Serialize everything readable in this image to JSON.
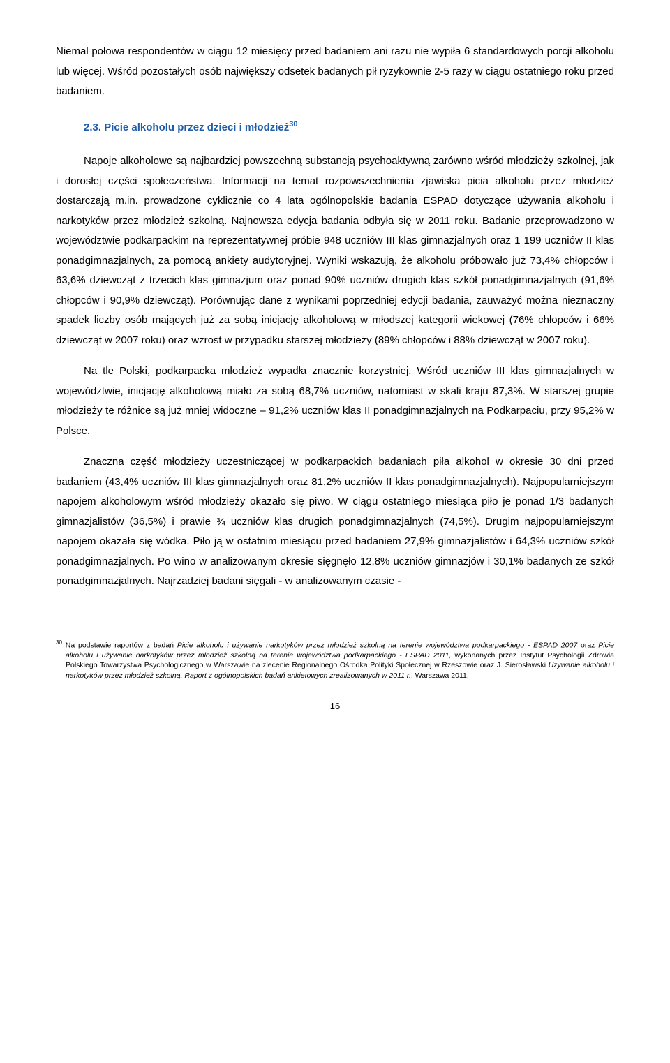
{
  "intro_paragraph": "Niemal połowa respondentów w ciągu 12 miesięcy przed badaniem ani razu nie wypiła 6 standardowych porcji alkoholu lub więcej. Wśród pozostałych osób największy odsetek badanych pił ryzykownie 2-5 razy w ciągu ostatniego roku przed badaniem.",
  "section": {
    "number": "2.3.",
    "title": "Picie alkoholu przez dzieci i młodzież",
    "footref": "30"
  },
  "para1": "Napoje alkoholowe są najbardziej powszechną substancją psychoaktywną zarówno wśród młodzieży szkolnej, jak i dorosłej części społeczeństwa. Informacji na temat rozpowszechnienia zjawiska picia alkoholu przez młodzież dostarczają m.in. prowadzone cyklicznie co 4 lata ogólnopolskie badania ESPAD dotyczące używania alkoholu i narkotyków przez młodzież szkolną. Najnowsza edycja badania odbyła się w 2011 roku. Badanie przeprowadzono w województwie podkarpackim na reprezentatywnej próbie 948 uczniów III klas gimnazjalnych oraz 1 199 uczniów II klas ponadgimnazjalnych, za pomocą ankiety audytoryjnej. Wyniki wskazują, że alkoholu próbowało już 73,4% chłopców i 63,6% dziewcząt z trzecich klas gimnazjum oraz ponad 90% uczniów drugich klas szkół ponadgimnazjalnych (91,6% chłopców i 90,9% dziewcząt). Porównując dane z wynikami poprzedniej edycji badania, zauważyć można nieznaczny spadek liczby osób mających już za sobą inicjację alkoholową w młodszej kategorii wiekowej (76% chłopców i 66% dziewcząt w 2007 roku) oraz wzrost w przypadku starszej młodzieży (89% chłopców i 88% dziewcząt w 2007 roku).",
  "para2": "Na tle Polski, podkarpacka młodzież wypadła znacznie korzystniej. Wśród uczniów III klas gimnazjalnych w województwie, inicjację alkoholową miało za sobą 68,7% uczniów, natomiast w skali kraju 87,3%. W starszej grupie młodzieży te różnice są już mniej widoczne – 91,2% uczniów klas II ponadgimnazjalnych na Podkarpaciu, przy 95,2% w Polsce.",
  "para3": "Znaczna część młodzieży uczestniczącej w podkarpackich badaniach piła alkohol w okresie 30 dni przed badaniem (43,4% uczniów III klas gimnazjalnych oraz 81,2% uczniów II klas ponadgimnazjalnych). Najpopularniejszym napojem alkoholowym wśród młodzieży okazało się piwo. W ciągu ostatniego miesiąca piło je ponad 1/3 badanych gimnazjalistów (36,5%) i prawie ¾ uczniów klas drugich ponadgimnazjalnych (74,5%). Drugim najpopularniejszym napojem okazała się wódka. Piło ją w ostatnim miesiącu przed badaniem 27,9% gimnazjalistów i 64,3% uczniów szkół ponadgimnazjalnych. Po wino w analizowanym okresie sięgnęło 12,8% uczniów gimnazjów i 30,1% badanych ze szkół ponadgimnazjalnych. Najrzadziej badani sięgali - w analizowanym czasie -",
  "footnote": {
    "ref": "30",
    "text_part1": "Na podstawie raportów z badań ",
    "italic1": "Picie alkoholu i używanie narkotyków przez młodzież szkolną na terenie województwa podkarpackiego - ESPAD 2007",
    "text_part2": " oraz ",
    "italic2": "Picie alkoholu i używanie narkotyków przez młodzież szkolną na terenie województwa podkarpackiego - ESPAD 2011,",
    "text_part3": " wykonanych przez Instytut Psychologii Zdrowia Polskiego Towarzystwa Psychologicznego w Warszawie na zlecenie Regionalnego Ośrodka Polityki Społecznej w Rzeszowie oraz J. Sierosławski ",
    "italic3": "Używanie alkoholu i narkotyków przez młodzież szkolną. Raport z ogólnopolskich badań ankietowych zrealizowanych w 2011 r.",
    "text_part4": ", Warszawa 2011."
  },
  "page_number": "16"
}
